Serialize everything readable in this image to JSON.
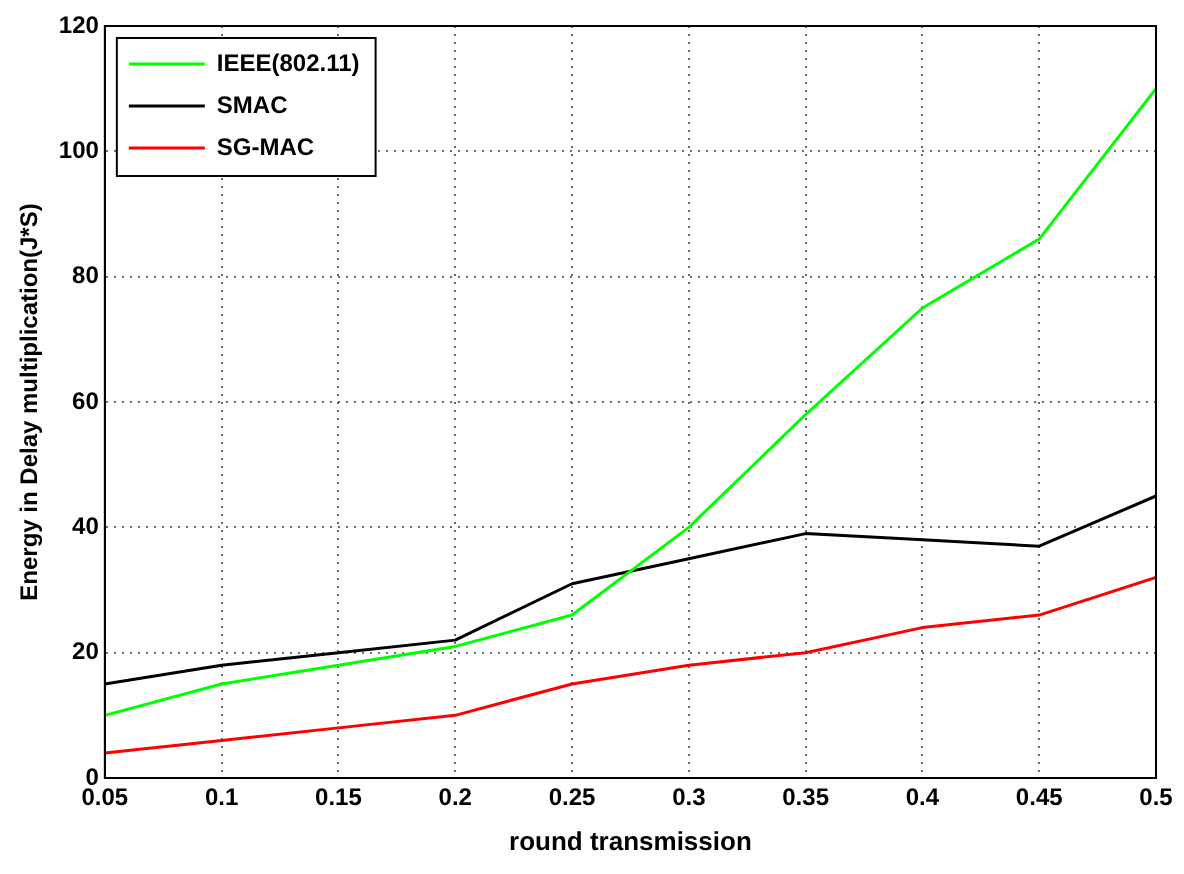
{
  "chart_data": {
    "type": "line",
    "xlabel": "round transmission",
    "ylabel": "Energy in Delay multiplication(J*S)",
    "x": [
      0.05,
      0.1,
      0.15,
      0.2,
      0.25,
      0.3,
      0.35,
      0.4,
      0.45,
      0.5
    ],
    "series": [
      {
        "name": "IEEE(802.11)",
        "color": "#00ff00",
        "values": [
          10,
          15,
          18,
          21,
          26,
          40,
          58,
          75,
          86,
          110
        ]
      },
      {
        "name": "SMAC",
        "color": "#000000",
        "values": [
          15,
          18,
          20,
          22,
          31,
          35,
          39,
          38,
          37,
          45
        ]
      },
      {
        "name": "SG-MAC",
        "color": "#ff0000",
        "values": [
          4,
          6,
          8,
          10,
          15,
          18,
          20,
          24,
          26,
          32
        ]
      }
    ],
    "xlim": [
      0.05,
      0.5
    ],
    "xticks": [
      0.05,
      0.1,
      0.15,
      0.2,
      0.25,
      0.3,
      0.35,
      0.4,
      0.45,
      0.5
    ],
    "ylim": [
      0,
      120
    ],
    "yticks": [
      0,
      20,
      40,
      60,
      80,
      100,
      120
    ],
    "grid": true,
    "legend": "top left",
    "marker": "none",
    "line_style": "solid"
  }
}
